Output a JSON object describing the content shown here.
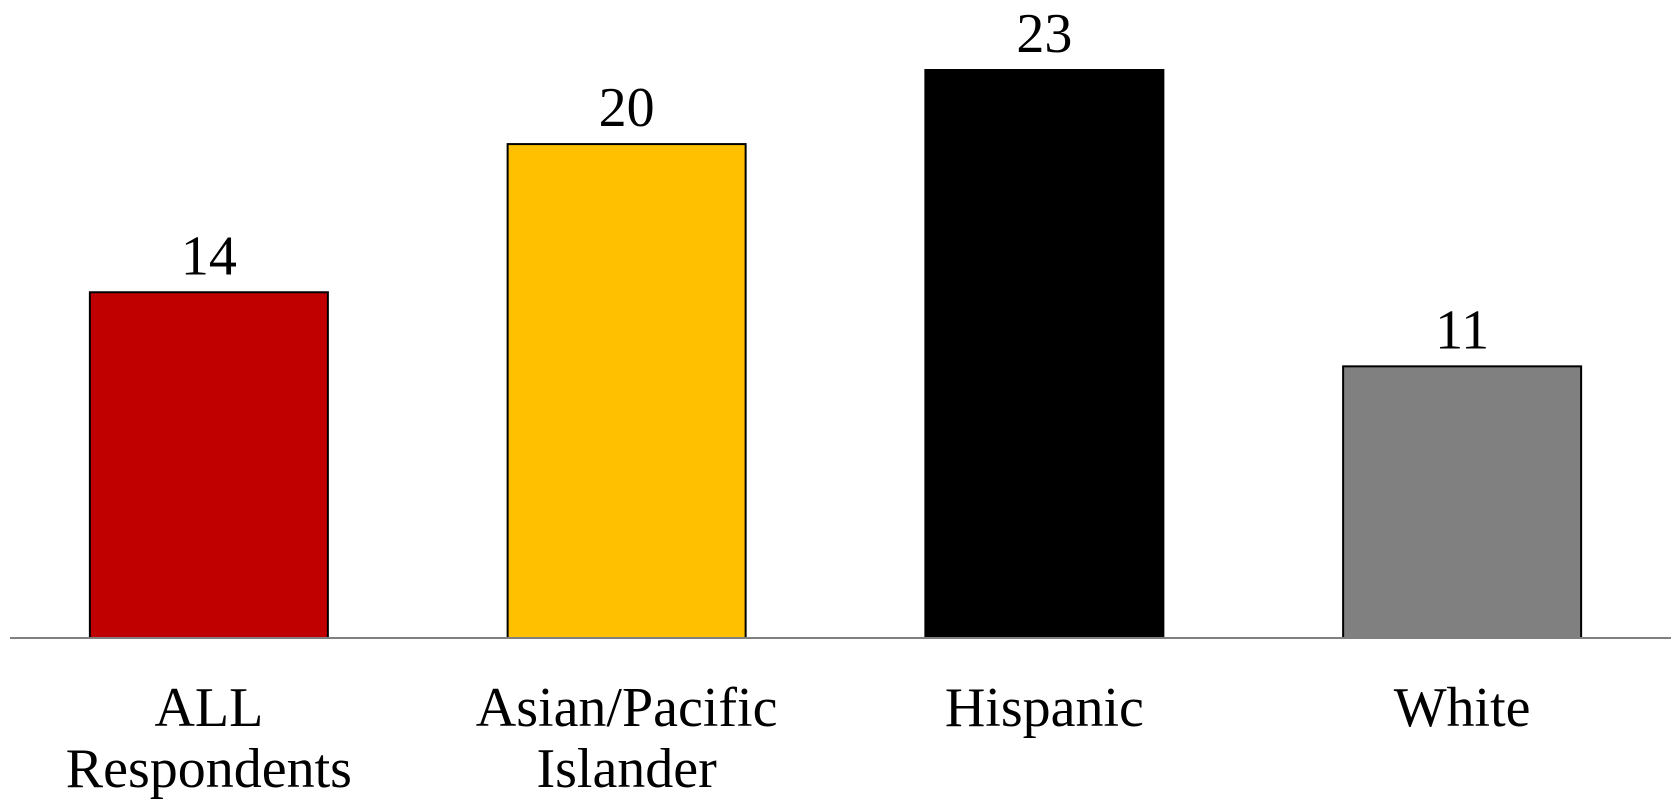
{
  "chart_data": {
    "type": "bar",
    "categories": [
      [
        "ALL",
        "Respondents"
      ],
      [
        "Asian/Pacific",
        "Islander"
      ],
      [
        "Hispanic"
      ],
      [
        "White"
      ]
    ],
    "values": [
      14,
      20,
      23,
      11
    ],
    "colors": [
      "#C00000",
      "#FFC000",
      "#000000",
      "#808080"
    ],
    "data_labels": [
      "14",
      "20",
      "23",
      "11"
    ],
    "ylim": [
      0,
      23
    ],
    "title": "",
    "xlabel": "",
    "ylabel": "",
    "grid": false,
    "legend": "none"
  }
}
